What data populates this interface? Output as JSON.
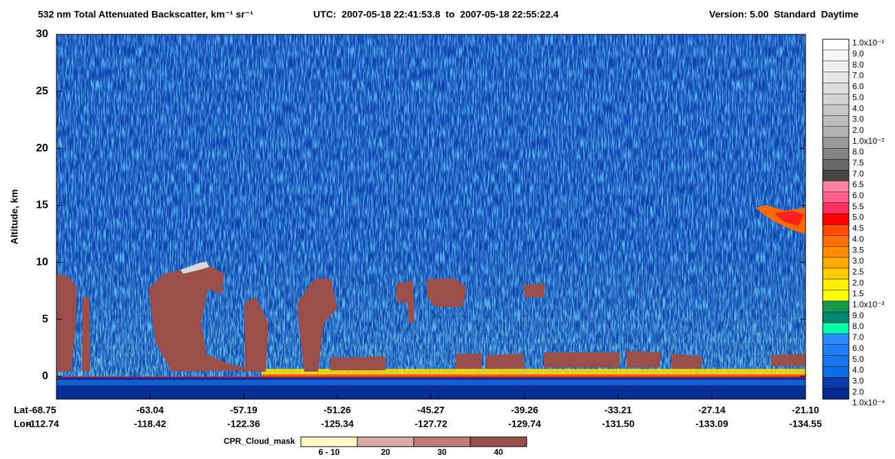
{
  "chart_data": {
    "type": "curtain",
    "title": "532 nm Total Attenuated Backscatter, km⁻¹ sr⁻¹",
    "utc": "UTC:  2007-05-18 22:41:53.8  to  2007-05-18 22:55:22.4",
    "version": "Version: 5.00  Standard  Daytime",
    "ylabel": "Altitude, km",
    "ylim": [
      -2,
      30
    ],
    "yticks": [
      0,
      5,
      10,
      15,
      20,
      25,
      30
    ],
    "lat_label": "Lat",
    "lon_label": "Lon",
    "lat": [
      "-68.75",
      "-63.04",
      "-57.19",
      "-51.26",
      "-45.27",
      "-39.26",
      "-33.21",
      "-27.14",
      "-21.10"
    ],
    "lon": [
      "-112.74",
      "-118.42",
      "-122.36",
      "-125.34",
      "-127.72",
      "-129.74",
      "-131.50",
      "-133.09",
      "-134.55"
    ],
    "colorbar": {
      "labels": [
        "1.0x10⁻¹",
        "9.0",
        "8.0",
        "7.0",
        "6.0",
        "5.0",
        "4.0",
        "3.0",
        "2.0",
        "1.0x10⁻²",
        "8.0",
        "7.5",
        "7.0",
        "6.5",
        "6.0",
        "5.5",
        "5.0",
        "4.5",
        "4.0",
        "3.5",
        "3.0",
        "2.5",
        "2.0",
        "1.5",
        "1.0x10⁻³",
        "9.0",
        "8.0",
        "7.0",
        "6.0",
        "5.0",
        "4.0",
        "3.0",
        "2.0",
        "1.0x10⁻⁴"
      ],
      "colors": [
        "#ffffff",
        "#f7f7f7",
        "#efefef",
        "#e6e6e6",
        "#dddddd",
        "#d3d3d3",
        "#c8c8c8",
        "#bcbcbc",
        "#b0b0b0",
        "#9a9a9a",
        "#848484",
        "#686868",
        "#464646",
        "#ff82a8",
        "#ff5f88",
        "#ff3060",
        "#ff0000",
        "#ff4a00",
        "#ff6e00",
        "#ff8c00",
        "#ffaa00",
        "#ffcc00",
        "#ffee00",
        "#ffff00",
        "#169a4a",
        "#00876e",
        "#00ffa8",
        "#2a8cff",
        "#1e80f8",
        "#1676ee",
        "#0e6ce4",
        "#0a3ca8",
        "#06288e"
      ]
    },
    "cloud_mask": {
      "title": "CPR_Cloud_mask",
      "labels": [
        "6 - 10",
        "20",
        "30",
        "40"
      ],
      "colors": [
        "#fffbc8",
        "#d9aaa6",
        "#bf7c78",
        "#9b4f4a"
      ]
    }
  }
}
